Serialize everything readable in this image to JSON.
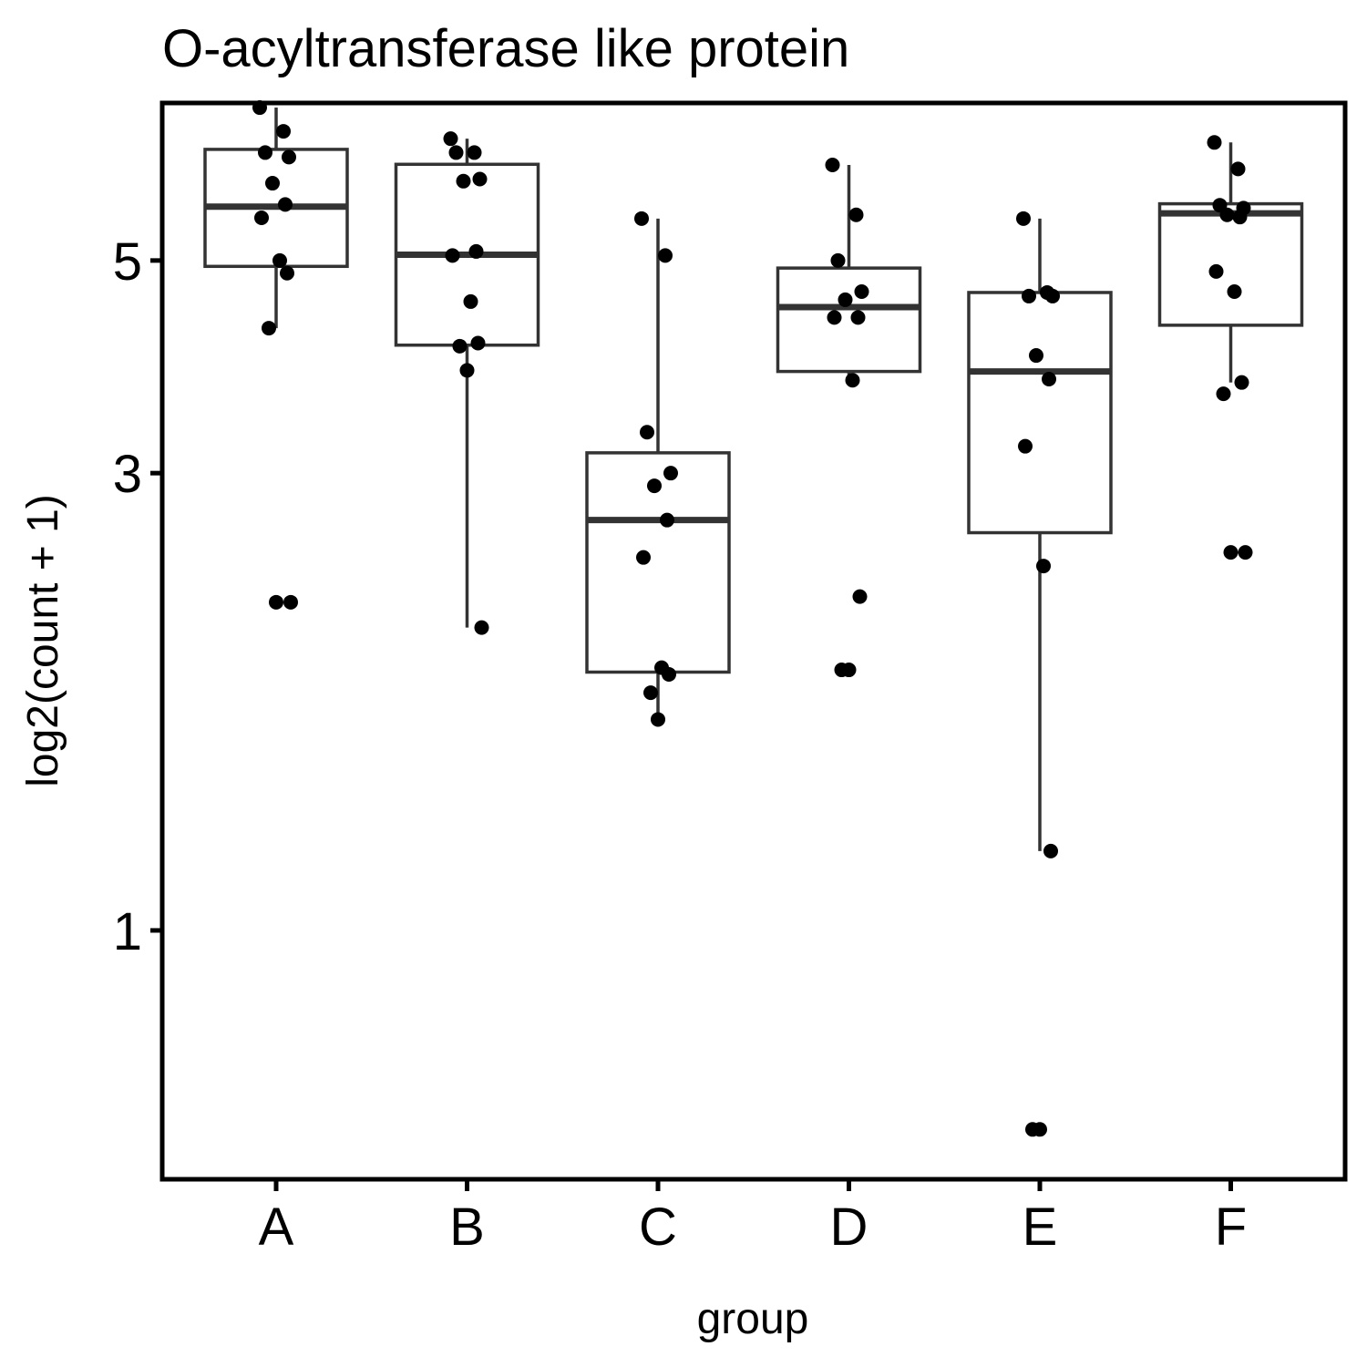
{
  "chart_data": {
    "type": "box",
    "title": "O-acyltransferase like protein",
    "xlabel": "group",
    "ylabel": "log2(count + 1)",
    "y_scale": "log",
    "y_ticks": [
      1,
      3,
      5
    ],
    "ylim": [
      0.55,
      7.3
    ],
    "categories": [
      "A",
      "B",
      "C",
      "D",
      "E",
      "F"
    ],
    "boxes": [
      {
        "category": "A",
        "whisker_low": 4.25,
        "q1": 4.93,
        "median": 5.69,
        "q3": 6.53,
        "whisker_high": 7.22
      },
      {
        "category": "B",
        "whisker_low": 2.07,
        "q1": 4.08,
        "median": 5.07,
        "q3": 6.3,
        "whisker_high": 6.7
      },
      {
        "category": "C",
        "whisker_low": 1.66,
        "q1": 1.86,
        "median": 2.68,
        "q3": 3.15,
        "whisker_high": 5.53
      },
      {
        "category": "D",
        "whisker_low": 3.75,
        "q1": 3.83,
        "median": 4.47,
        "q3": 4.91,
        "whisker_high": 6.29
      },
      {
        "category": "E",
        "whisker_low": 1.21,
        "q1": 2.6,
        "median": 3.83,
        "q3": 4.63,
        "whisker_high": 5.53
      },
      {
        "category": "F",
        "whisker_low": 3.73,
        "q1": 4.28,
        "median": 5.6,
        "q3": 5.73,
        "whisker_high": 6.64
      }
    ],
    "points": [
      {
        "category": "A",
        "values": [
          7.22,
          6.82,
          6.48,
          6.41,
          6.02,
          5.72,
          5.54,
          5.0,
          4.85,
          4.25,
          2.2,
          2.2
        ]
      },
      {
        "category": "B",
        "values": [
          6.7,
          6.48,
          6.48,
          6.08,
          6.05,
          5.11,
          5.06,
          4.53,
          4.1,
          4.07,
          3.84,
          2.07
        ]
      },
      {
        "category": "C",
        "values": [
          5.53,
          5.06,
          3.31,
          3.0,
          2.91,
          2.68,
          2.45,
          1.88,
          1.85,
          1.77,
          1.66
        ]
      },
      {
        "category": "D",
        "values": [
          6.29,
          5.58,
          5.0,
          4.64,
          4.55,
          4.36,
          4.36,
          3.75,
          2.23,
          1.87,
          1.87
        ]
      },
      {
        "category": "E",
        "values": [
          5.53,
          4.63,
          4.59,
          4.59,
          3.98,
          3.76,
          3.2,
          2.4,
          1.21,
          0.62,
          0.62
        ]
      },
      {
        "category": "F",
        "values": [
          6.64,
          6.23,
          5.71,
          5.67,
          5.58,
          5.55,
          4.87,
          4.64,
          3.73,
          3.63,
          2.48,
          2.48
        ]
      }
    ],
    "grid": false,
    "legend": "none",
    "colors": {
      "box": "#333333",
      "point": "#000000",
      "frame": "#000000",
      "background": "#ffffff"
    }
  }
}
